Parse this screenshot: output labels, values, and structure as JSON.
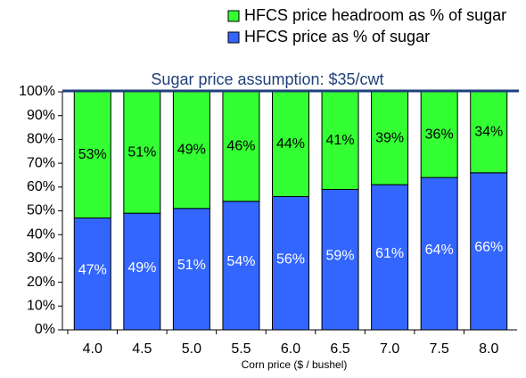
{
  "chart_data": {
    "type": "stacked_bar",
    "title": "Sugar price assumption: $35/cwt",
    "x_label": "Corn price ($ / bushel)",
    "categories": [
      "4.0",
      "4.5",
      "5.0",
      "5.5",
      "6.0",
      "6.5",
      "7.0",
      "7.5",
      "8.0"
    ],
    "series": [
      {
        "name": "HFCS price as % of sugar",
        "color": "#3366ff",
        "values": [
          47,
          49,
          51,
          54,
          56,
          59,
          61,
          64,
          66
        ],
        "value_labels": [
          "47%",
          "49%",
          "51%",
          "54%",
          "56%",
          "59%",
          "61%",
          "64%",
          "66%"
        ]
      },
      {
        "name": "HFCS price headroom as % of sugar",
        "color": "#33ff33",
        "values": [
          53,
          51,
          49,
          46,
          44,
          41,
          39,
          36,
          34
        ],
        "value_labels": [
          "53%",
          "51%",
          "49%",
          "46%",
          "44%",
          "41%",
          "39%",
          "36%",
          "34%"
        ]
      }
    ],
    "ylim": [
      0,
      100
    ],
    "yticks": [
      {
        "value": 0,
        "label": "0%"
      },
      {
        "value": 10,
        "label": "10%"
      },
      {
        "value": 20,
        "label": "20%"
      },
      {
        "value": 30,
        "label": "30%"
      },
      {
        "value": 40,
        "label": "40%"
      },
      {
        "value": 50,
        "label": "50%"
      },
      {
        "value": 60,
        "label": "60%"
      },
      {
        "value": 70,
        "label": "70%"
      },
      {
        "value": 80,
        "label": "80%"
      },
      {
        "value": 90,
        "label": "90%"
      },
      {
        "value": 100,
        "label": "100%"
      }
    ]
  }
}
